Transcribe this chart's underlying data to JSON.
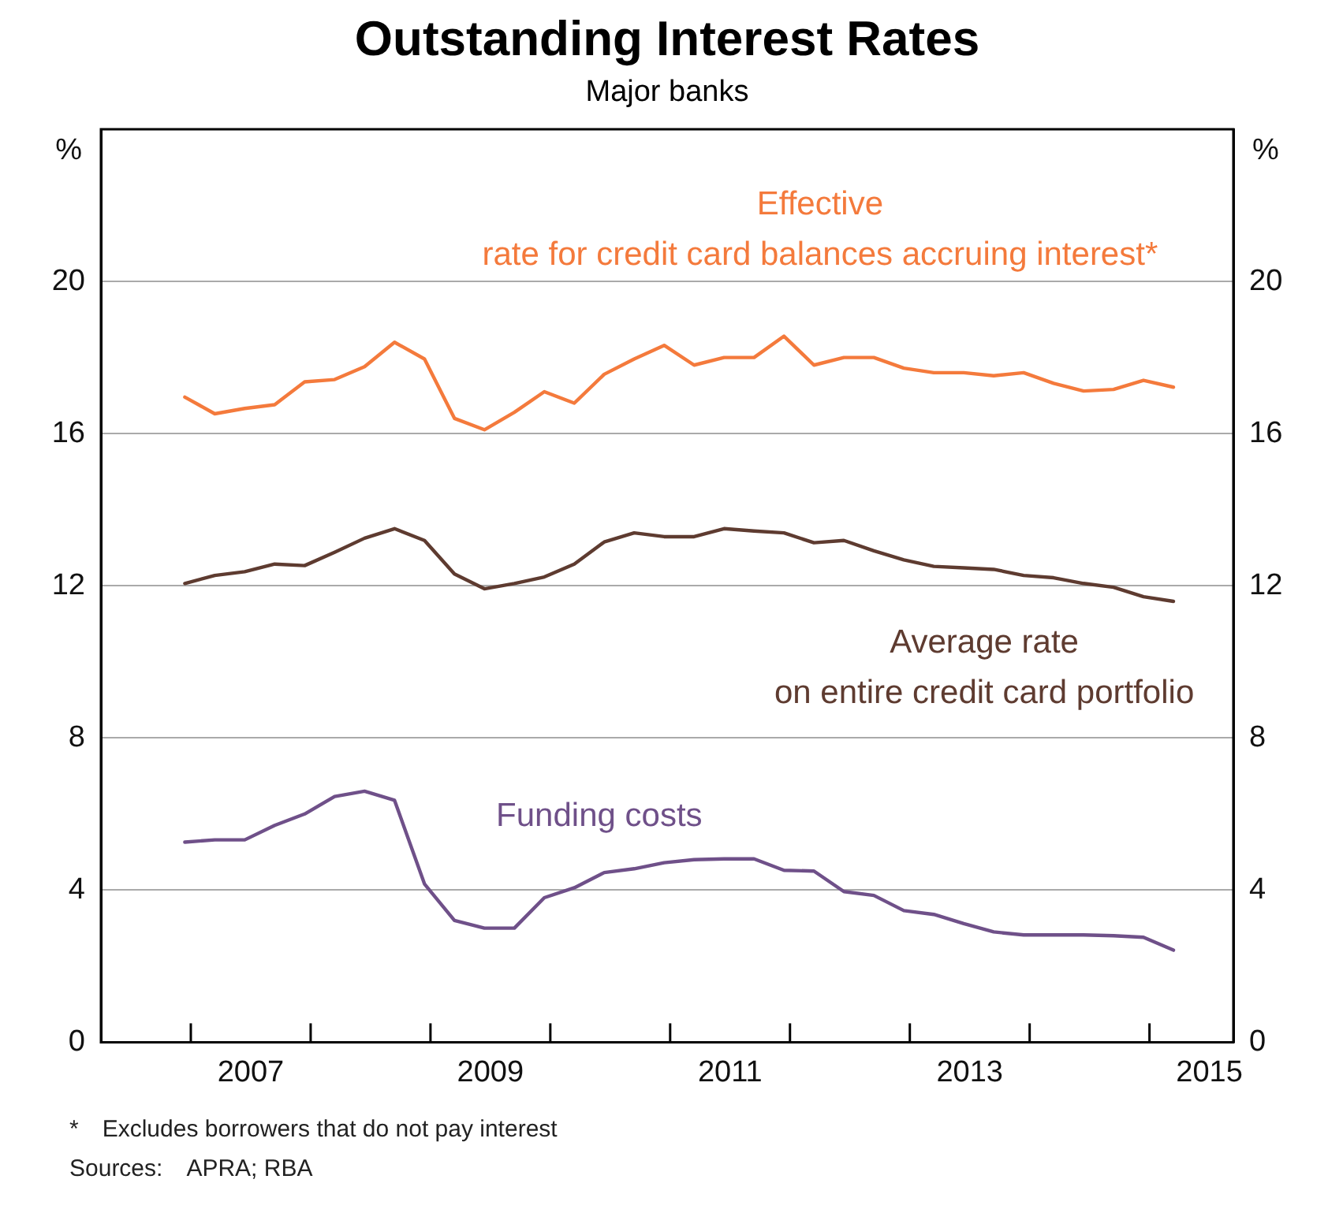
{
  "chart_data": {
    "type": "line",
    "title": "Outstanding Interest Rates",
    "subtitle": "Major banks",
    "ylabel": "%",
    "y2label": "%",
    "x": [
      2006.95,
      2007.2,
      2007.45,
      2007.7,
      2007.95,
      2008.2,
      2008.45,
      2008.7,
      2008.95,
      2009.2,
      2009.45,
      2009.7,
      2009.95,
      2010.2,
      2010.45,
      2010.7,
      2010.95,
      2011.2,
      2011.45,
      2011.7,
      2011.95,
      2012.2,
      2012.45,
      2012.7,
      2012.95,
      2013.2,
      2013.45,
      2013.7,
      2013.95,
      2014.2,
      2014.45,
      2014.7,
      2014.95,
      2015.2
    ],
    "series": [
      {
        "name": "Effective rate for credit card balances accruing interest*",
        "color": "#f47a3c",
        "values": [
          16.96,
          16.52,
          16.66,
          16.76,
          17.36,
          17.42,
          17.76,
          18.4,
          17.96,
          16.4,
          16.1,
          16.56,
          17.1,
          16.8,
          17.56,
          17.96,
          18.32,
          17.8,
          18.0,
          18.0,
          18.56,
          17.8,
          18.0,
          18.0,
          17.72,
          17.6,
          17.6,
          17.52,
          17.6,
          17.32,
          17.12,
          17.16,
          17.4,
          17.22
        ]
      },
      {
        "name": "Average rate on entire credit card portfolio",
        "color": "#5e3b30",
        "values": [
          12.06,
          12.27,
          12.37,
          12.57,
          12.53,
          12.88,
          13.25,
          13.5,
          13.19,
          12.31,
          11.92,
          12.06,
          12.23,
          12.57,
          13.15,
          13.39,
          13.29,
          13.29,
          13.5,
          13.44,
          13.39,
          13.13,
          13.19,
          12.92,
          12.68,
          12.51,
          12.47,
          12.43,
          12.27,
          12.21,
          12.06,
          11.96,
          11.71,
          11.59
        ]
      },
      {
        "name": "Funding costs",
        "color": "#6f5089",
        "values": [
          5.26,
          5.32,
          5.32,
          5.7,
          6.0,
          6.46,
          6.6,
          6.36,
          4.16,
          3.2,
          3.0,
          3.0,
          3.8,
          4.06,
          4.46,
          4.56,
          4.72,
          4.8,
          4.82,
          4.82,
          4.52,
          4.5,
          3.96,
          3.86,
          3.46,
          3.36,
          3.12,
          2.9,
          2.82,
          2.82,
          2.82,
          2.8,
          2.76,
          2.42
        ]
      }
    ],
    "xlim": [
      2006.25,
      2015.7
    ],
    "xticks": [
      {
        "value": 2007,
        "label": null
      },
      {
        "value": 2007.5,
        "label": "2007"
      },
      {
        "value": 2008,
        "label": null
      },
      {
        "value": 2009,
        "label": null
      },
      {
        "value": 2009.5,
        "label": "2009"
      },
      {
        "value": 2010,
        "label": null
      },
      {
        "value": 2011,
        "label": null
      },
      {
        "value": 2011.5,
        "label": "2011"
      },
      {
        "value": 2012,
        "label": null
      },
      {
        "value": 2013,
        "label": null
      },
      {
        "value": 2013.5,
        "label": "2013"
      },
      {
        "value": 2014,
        "label": null
      },
      {
        "value": 2015,
        "label": null
      },
      {
        "value": 2015.5,
        "label": "2015"
      }
    ],
    "ylim": [
      0,
      24
    ],
    "yticks": [
      0,
      4,
      8,
      12,
      16,
      20
    ],
    "y2lim": [
      0,
      24
    ],
    "y2ticks": [
      0,
      4,
      8,
      12,
      16,
      20
    ],
    "grid": "y",
    "legend": false,
    "marker": "none",
    "line_style": "solid",
    "annotations": [
      "* Excludes borrowers that do not pay interest",
      "Sources: APRA; RBA"
    ]
  }
}
